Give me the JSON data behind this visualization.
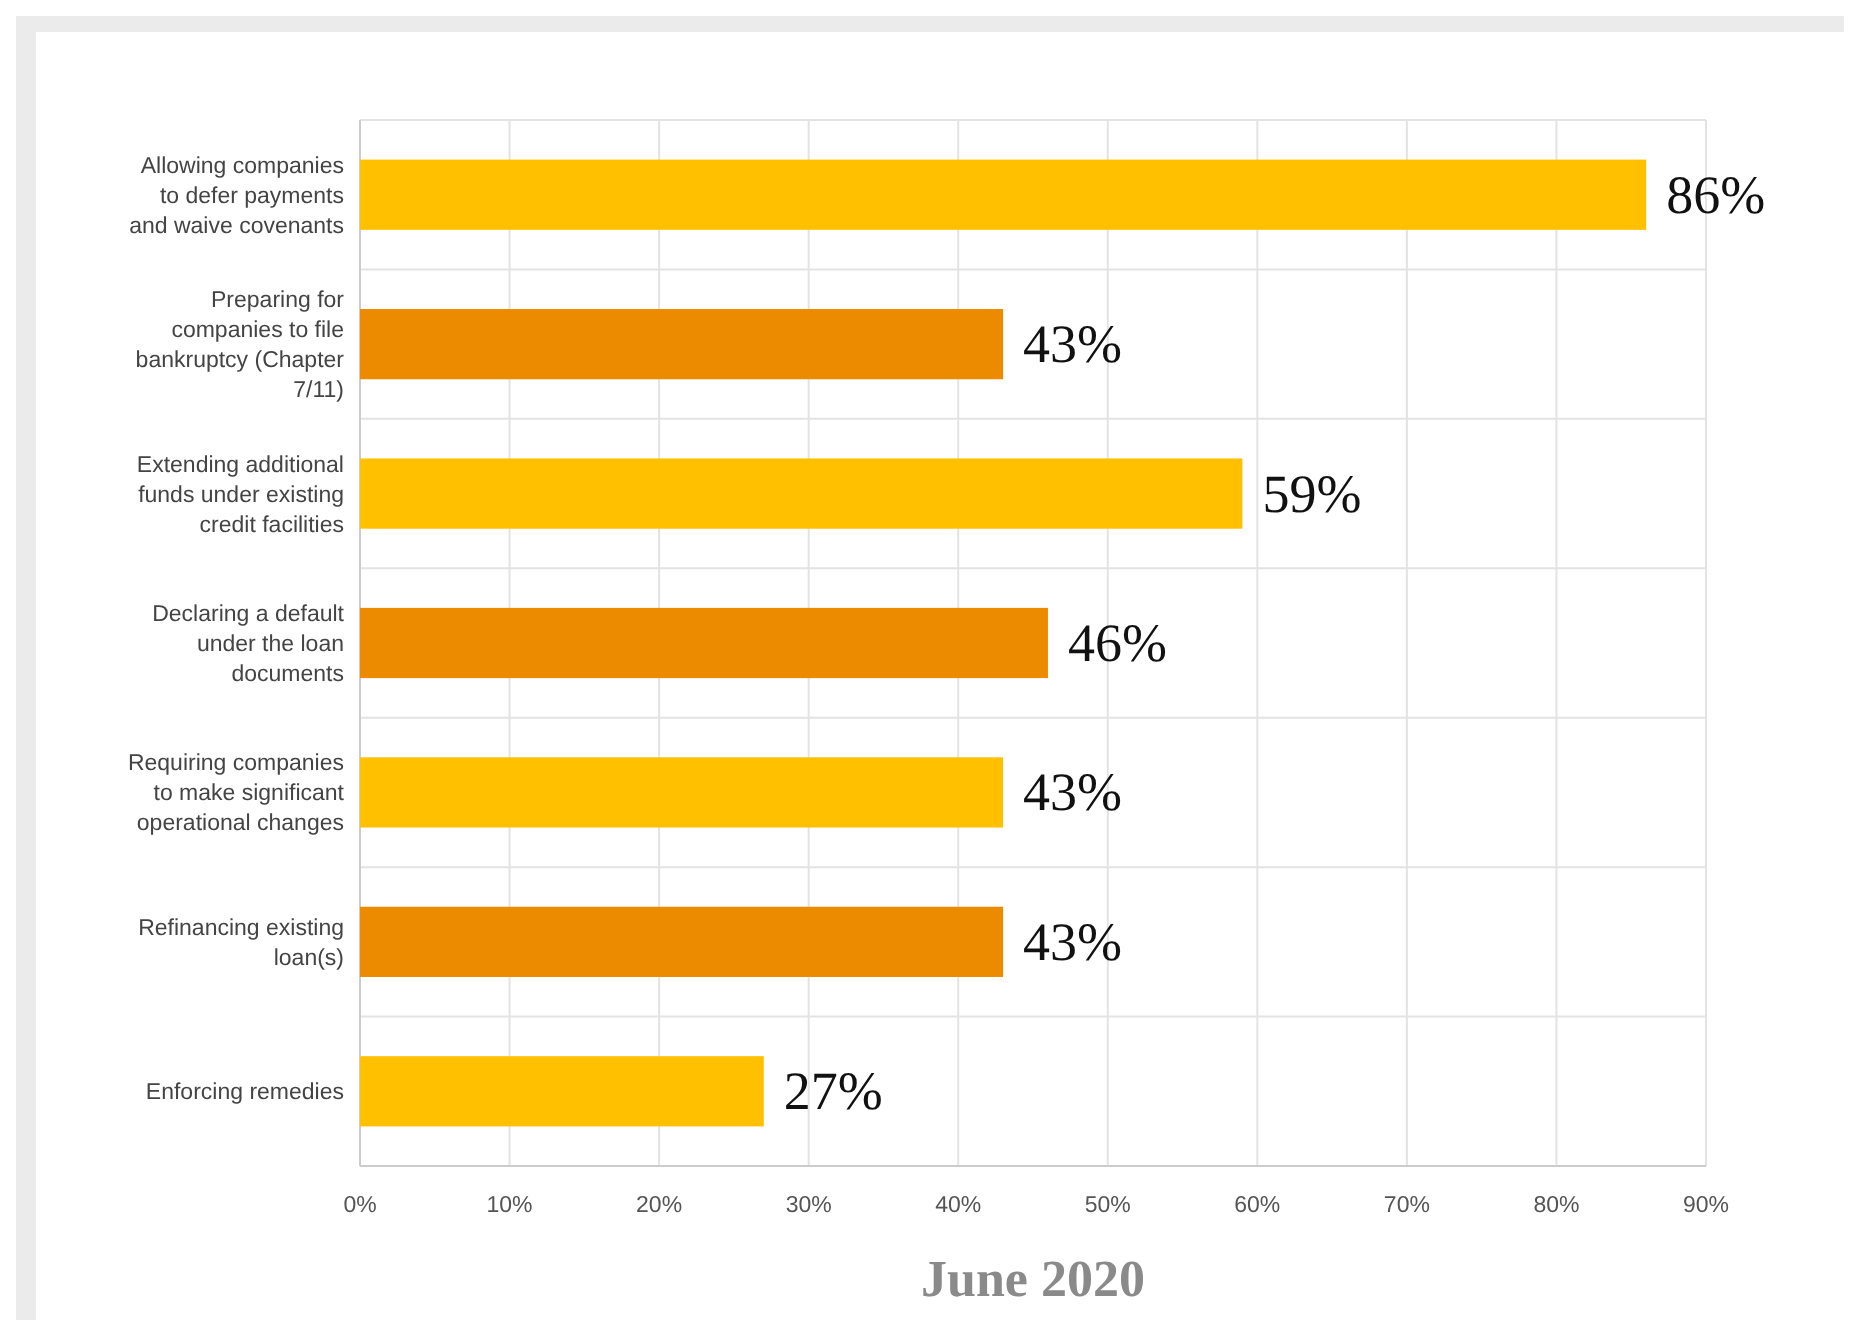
{
  "chart_data": {
    "type": "bar",
    "orientation": "horizontal",
    "xlabel": "June 2020",
    "categories": [
      "Allowing companies to defer payments and waive covenants",
      "Preparing for companies to file bankruptcy (Chapter 7/11)",
      "Extending additional funds under existing credit facilities",
      "Declaring a default under the loan documents",
      "Requiring companies to make significant operational changes",
      "Refinancing existing loan(s)",
      "Enforcing remedies"
    ],
    "values": [
      86,
      43,
      59,
      46,
      43,
      43,
      27
    ],
    "value_labels": [
      "86%",
      "43%",
      "59%",
      "46%",
      "43%",
      "43%",
      "27%"
    ],
    "colors": [
      "#ffc000",
      "#ed8b00",
      "#ffc000",
      "#ed8b00",
      "#ffc000",
      "#ed8b00",
      "#ffc000"
    ],
    "xlim": [
      0,
      90
    ],
    "xticks": [
      {
        "value": 0,
        "label": "0%"
      },
      {
        "value": 10,
        "label": "10%"
      },
      {
        "value": 20,
        "label": "20%"
      },
      {
        "value": 30,
        "label": "30%"
      },
      {
        "value": 40,
        "label": "40%"
      },
      {
        "value": 50,
        "label": "50%"
      },
      {
        "value": 60,
        "label": "60%"
      },
      {
        "value": 70,
        "label": "70%"
      },
      {
        "value": 80,
        "label": "80%"
      },
      {
        "value": 90,
        "label": "90%"
      }
    ],
    "grid": true
  }
}
